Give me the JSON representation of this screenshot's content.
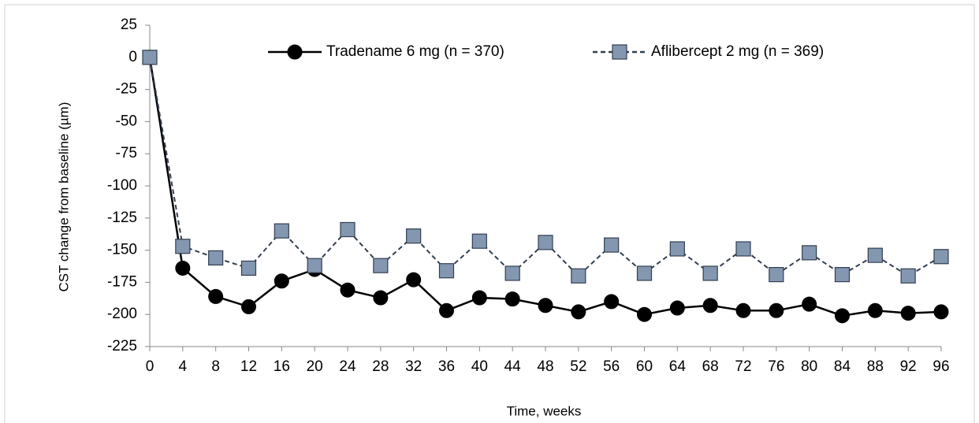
{
  "chart_data": {
    "type": "line",
    "x_label": "Time, weeks",
    "y_label": "CST change from baseline (µm)",
    "x": [
      0,
      4,
      8,
      12,
      16,
      20,
      24,
      28,
      32,
      36,
      40,
      44,
      48,
      52,
      56,
      60,
      64,
      68,
      72,
      76,
      80,
      84,
      88,
      92,
      96
    ],
    "series": [
      {
        "name": "Tradename 6 mg (n = 370)",
        "color": "#000000",
        "marker": "circle",
        "line_style": "solid",
        "values": [
          0,
          -164,
          -186,
          -194,
          -174,
          -165,
          -181,
          -187,
          -173,
          -197,
          -187,
          -188,
          -193,
          -198,
          -190,
          -200,
          -195,
          -193,
          -197,
          -197,
          -192,
          -201,
          -197,
          -199,
          -198
        ]
      },
      {
        "name": "Aflibercept 2 mg (n = 369)",
        "color": "#8497b0",
        "marker": "square",
        "line_style": "dashed",
        "values": [
          0,
          -147,
          -156,
          -164,
          -135,
          -162,
          -134,
          -162,
          -139,
          -166,
          -143,
          -168,
          -144,
          -170,
          -146,
          -168,
          -149,
          -168,
          -149,
          -169,
          -152,
          -169,
          -154,
          -170,
          -155
        ]
      }
    ],
    "xlim": [
      0,
      96
    ],
    "xticks": [
      0,
      4,
      8,
      12,
      16,
      20,
      24,
      28,
      32,
      36,
      40,
      44,
      48,
      52,
      56,
      60,
      64,
      68,
      72,
      76,
      80,
      84,
      88,
      92,
      96
    ],
    "ylim": [
      -225,
      25
    ],
    "yticks": [
      -225,
      -200,
      -175,
      -150,
      -125,
      -100,
      -75,
      -50,
      -25,
      0,
      25
    ],
    "grid": false,
    "legend": "top"
  }
}
